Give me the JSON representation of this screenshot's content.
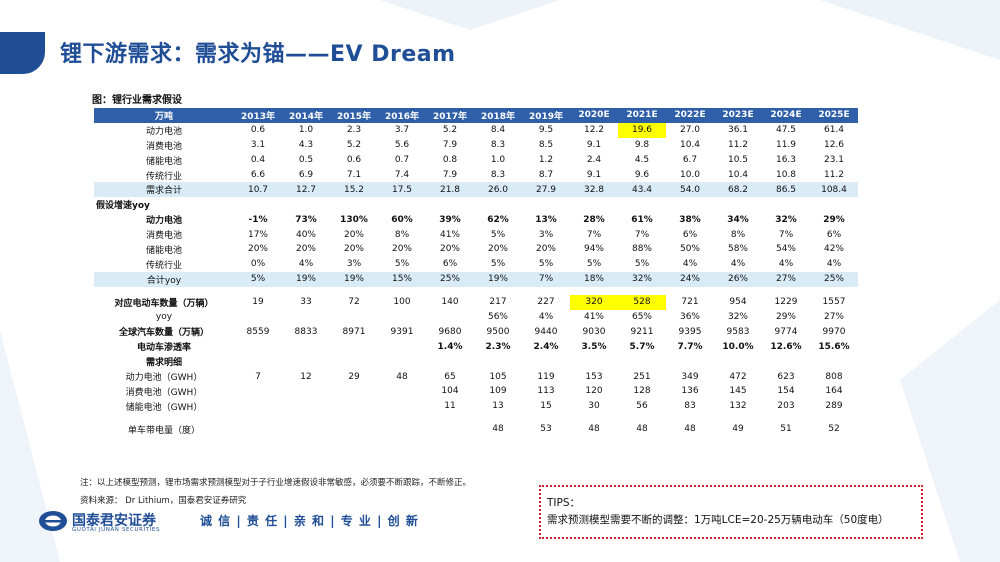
{
  "header": {
    "title": "锂下游需求：需求为锚——EV Dream"
  },
  "figure": {
    "title": "图：锂行业需求假设"
  },
  "table": {
    "columns": [
      "万吨",
      "2013年",
      "2014年",
      "2015年",
      "2016年",
      "2017年",
      "2018年",
      "2019年",
      "2020E",
      "2021E",
      "2022E",
      "2023E",
      "2024E",
      "2025E"
    ],
    "rows": [
      [
        "动力电池",
        "0.6",
        "1.0",
        "2.3",
        "3.7",
        "5.2",
        "8.4",
        "9.5",
        "12.2",
        "19.6",
        "27.0",
        "36.1",
        "47.5",
        "61.4"
      ],
      [
        "消费电池",
        "3.1",
        "4.3",
        "5.2",
        "5.6",
        "7.9",
        "8.3",
        "8.5",
        "9.1",
        "9.8",
        "10.4",
        "11.2",
        "11.9",
        "12.6"
      ],
      [
        "储能电池",
        "0.4",
        "0.5",
        "0.6",
        "0.7",
        "0.8",
        "1.0",
        "1.2",
        "2.4",
        "4.5",
        "6.7",
        "10.5",
        "16.3",
        "23.1"
      ],
      [
        "传统行业",
        "6.6",
        "6.9",
        "7.1",
        "7.4",
        "7.9",
        "8.3",
        "8.7",
        "9.1",
        "9.6",
        "10.0",
        "10.4",
        "10.8",
        "11.2"
      ],
      [
        "需求合计",
        "10.7",
        "12.7",
        "15.2",
        "17.5",
        "21.8",
        "26.0",
        "27.9",
        "32.8",
        "43.4",
        "54.0",
        "68.2",
        "86.5",
        "108.4"
      ],
      [
        "假设增速yoy",
        "",
        "",
        "",
        "",
        "",
        "",
        "",
        "",
        "",
        "",
        "",
        "",
        ""
      ],
      [
        "动力电池",
        "-1%",
        "73%",
        "130%",
        "60%",
        "39%",
        "62%",
        "13%",
        "28%",
        "61%",
        "38%",
        "34%",
        "32%",
        "29%"
      ],
      [
        "消费电池",
        "17%",
        "40%",
        "20%",
        "8%",
        "41%",
        "5%",
        "3%",
        "7%",
        "7%",
        "6%",
        "8%",
        "7%",
        "6%"
      ],
      [
        "储能电池",
        "20%",
        "20%",
        "20%",
        "20%",
        "20%",
        "20%",
        "20%",
        "94%",
        "88%",
        "50%",
        "58%",
        "54%",
        "42%"
      ],
      [
        "传统行业",
        "0%",
        "4%",
        "3%",
        "5%",
        "6%",
        "5%",
        "5%",
        "5%",
        "5%",
        "4%",
        "4%",
        "4%",
        "4%"
      ],
      [
        "合计yoy",
        "5%",
        "19%",
        "19%",
        "15%",
        "25%",
        "19%",
        "7%",
        "18%",
        "32%",
        "24%",
        "26%",
        "27%",
        "25%"
      ],
      [
        "",
        "",
        "",
        "",
        "",
        "",
        "",
        "",
        "",
        "",
        "",
        "",
        "",
        ""
      ],
      [
        "对应电动车数量（万辆）",
        "19",
        "33",
        "72",
        "100",
        "140",
        "217",
        "227",
        "320",
        "528",
        "721",
        "954",
        "1229",
        "1557"
      ],
      [
        "yoy",
        "",
        "",
        "",
        "",
        "",
        "56%",
        "4%",
        "41%",
        "65%",
        "36%",
        "32%",
        "29%",
        "27%"
      ],
      [
        "全球汽车数量（万辆）",
        "8559",
        "8833",
        "8971",
        "9391",
        "9680",
        "9500",
        "9440",
        "9030",
        "9211",
        "9395",
        "9583",
        "9774",
        "9970"
      ],
      [
        "电动车渗透率",
        "",
        "",
        "",
        "",
        "1.4%",
        "2.3%",
        "2.4%",
        "3.5%",
        "5.7%",
        "7.7%",
        "10.0%",
        "12.6%",
        "15.6%"
      ],
      [
        "需求明细",
        "",
        "",
        "",
        "",
        "",
        "",
        "",
        "",
        "",
        "",
        "",
        "",
        ""
      ],
      [
        "动力电池（GWH）",
        "7",
        "12",
        "29",
        "48",
        "65",
        "105",
        "119",
        "153",
        "251",
        "349",
        "472",
        "623",
        "808"
      ],
      [
        "消费电池（GWH）",
        "",
        "",
        "",
        "",
        "104",
        "109",
        "113",
        "120",
        "128",
        "136",
        "145",
        "154",
        "164"
      ],
      [
        "储能电池（GWH）",
        "",
        "",
        "",
        "",
        "11",
        "13",
        "15",
        "30",
        "56",
        "83",
        "132",
        "203",
        "289"
      ],
      [
        "",
        "",
        "",
        "",
        "",
        "",
        "",
        "",
        "",
        "",
        "",
        "",
        "",
        ""
      ],
      [
        "单车带电量（度）",
        "",
        "",
        "",
        "",
        "",
        "48",
        "53",
        "48",
        "48",
        "48",
        "49",
        "51",
        "52"
      ]
    ]
  },
  "notes": {
    "note": "注：以上述模型预测，锂市场需求预测模型对于子行业增速假设非常敏感，必须要不断跟踪，不断修正。",
    "source": "资料来源： Dr Lithium，国泰君安证券研究"
  },
  "logo": {
    "cn": "国泰君安证券",
    "en": "GUOTAI JUNAN SECURITIES"
  },
  "slogan": "诚 信 | 责 任 | 亲 和 | 专 业 | 创 新",
  "tips": {
    "label": "TIPS：",
    "text": "需求预测模型需要不断的调整：1万吨LCE=20-25万辆电动车（50度电）"
  },
  "colors": {
    "brand": "#1f4e96",
    "header_row": "#2e5fa8",
    "band": "#d9ecf6",
    "highlight": "#ffff00",
    "tips_border": "#d2202a"
  }
}
